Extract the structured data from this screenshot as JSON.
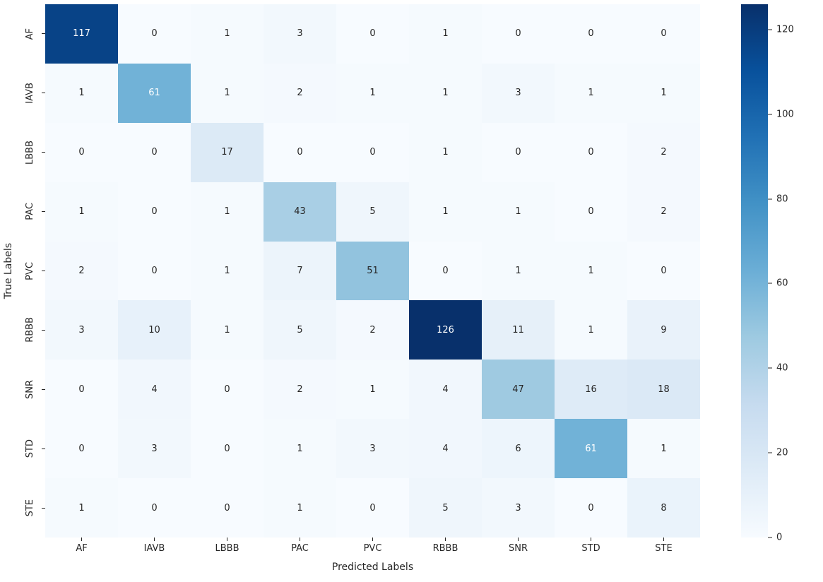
{
  "chart_data": {
    "type": "heatmap",
    "title": "",
    "xlabel": "Predicted Labels",
    "ylabel": "True Labels",
    "x_categories": [
      "AF",
      "IAVB",
      "LBBB",
      "PAC",
      "PVC",
      "RBBB",
      "SNR",
      "STD",
      "STE"
    ],
    "y_categories": [
      "AF",
      "IAVB",
      "LBBB",
      "PAC",
      "PVC",
      "RBBB",
      "SNR",
      "STD",
      "STE"
    ],
    "matrix": [
      [
        117,
        0,
        1,
        3,
        0,
        1,
        0,
        0,
        0
      ],
      [
        1,
        61,
        1,
        2,
        1,
        1,
        3,
        1,
        1
      ],
      [
        0,
        0,
        17,
        0,
        0,
        1,
        0,
        0,
        2
      ],
      [
        1,
        0,
        1,
        43,
        5,
        1,
        1,
        0,
        2
      ],
      [
        2,
        0,
        1,
        7,
        51,
        0,
        1,
        1,
        0
      ],
      [
        3,
        10,
        1,
        5,
        2,
        126,
        11,
        1,
        9
      ],
      [
        0,
        4,
        0,
        2,
        1,
        4,
        47,
        16,
        18
      ],
      [
        0,
        3,
        0,
        1,
        3,
        4,
        6,
        61,
        1
      ],
      [
        1,
        0,
        0,
        1,
        0,
        5,
        3,
        0,
        8
      ]
    ],
    "vmin": 0,
    "vmax": 126,
    "colormap": "Blues",
    "colormap_stops": [
      "#f7fbff",
      "#deebf7",
      "#c6dbef",
      "#9ecae1",
      "#6baed6",
      "#4292c6",
      "#2171b5",
      "#08519c",
      "#08306b"
    ],
    "colorbar_ticks": [
      0,
      20,
      40,
      60,
      80,
      100,
      120
    ],
    "annotation_dark_color": "#262626",
    "annotation_light_color": "#ffffff",
    "legend_position": "right",
    "grid": false
  }
}
